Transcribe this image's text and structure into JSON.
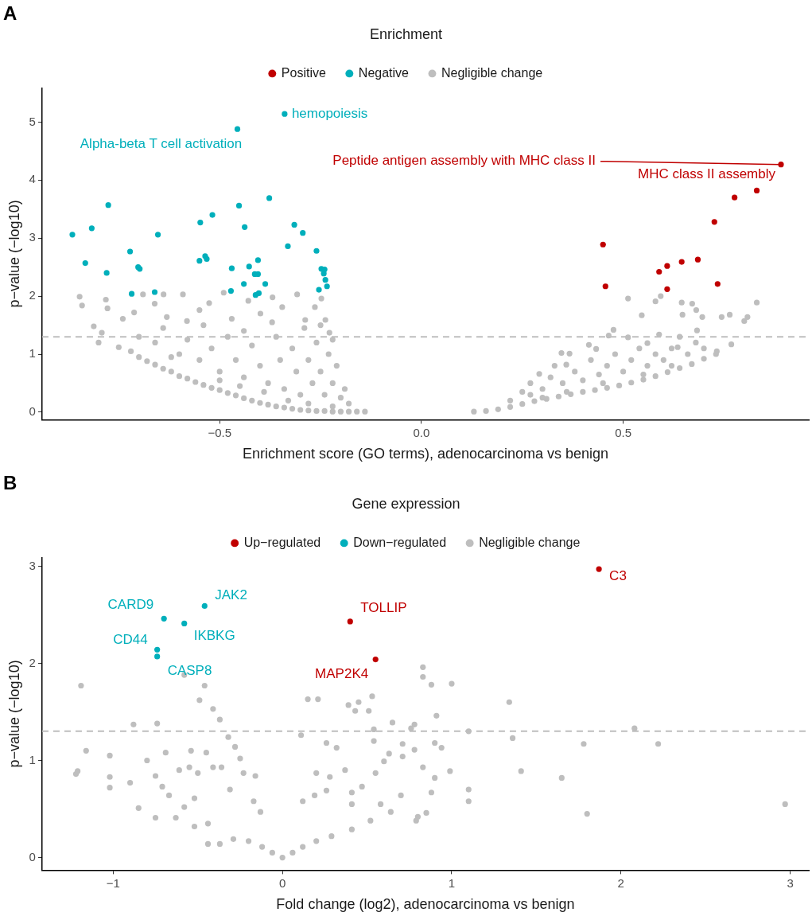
{
  "chart_data": [
    {
      "type": "scatter",
      "title": "A",
      "xlabel": "Enrichment score (GO terms), adenocarcinoma vs benign",
      "ylabel": "p−value (−log10)",
      "legend_title": "Enrichment",
      "legend": "top",
      "marker": "circle",
      "grid": false,
      "xlim": [
        -0.94,
        0.96
      ],
      "ylim": [
        -0.13,
        5.59
      ],
      "xticks": [
        {
          "value": -0.5,
          "label": "−0.5"
        },
        {
          "value": 0,
          "label": "0.0"
        },
        {
          "value": 0.5,
          "label": "0.5"
        }
      ],
      "yticks": [
        0,
        1,
        2,
        3,
        4,
        5
      ],
      "ref_lines": [
        {
          "axis": "y",
          "value": 1.3,
          "color": "#bebebe",
          "line_style": "dashed"
        }
      ],
      "annotations": [
        {
          "text": "hemopoiesis",
          "x": -0.339,
          "y": 5.14
        },
        {
          "text": "Alpha-beta T cell activation",
          "x": -0.456,
          "y": 4.88
        },
        {
          "text": "Peptide antigen assembly with MHC class II",
          "x": 0.891,
          "y": 4.27
        },
        {
          "text": "MHC class II assembly",
          "x": 0.891,
          "y": 4.27
        }
      ],
      "series": [
        {
          "name": "Negative",
          "color": "#00afbb",
          "x": [
            -0.339,
            -0.456,
            -0.776,
            -0.817,
            -0.865,
            -0.653,
            -0.722,
            -0.833,
            -0.702,
            -0.698,
            -0.78,
            -0.718,
            -0.661,
            -0.548,
            -0.518,
            -0.452,
            -0.377,
            -0.438,
            -0.315,
            -0.294,
            -0.331,
            -0.26,
            -0.536,
            -0.532,
            -0.55,
            -0.47,
            -0.427,
            -0.405,
            -0.413,
            -0.405,
            -0.44,
            -0.387,
            -0.472,
            -0.403,
            -0.411,
            -0.248,
            -0.24,
            -0.242,
            -0.238,
            -0.234,
            -0.254
          ],
          "values": [
            5.14,
            4.88,
            3.57,
            3.17,
            3.06,
            3.06,
            2.77,
            2.57,
            2.5,
            2.47,
            2.4,
            2.04,
            2.07,
            3.27,
            3.4,
            3.56,
            3.69,
            3.19,
            3.23,
            3.09,
            2.86,
            2.78,
            2.69,
            2.64,
            2.61,
            2.48,
            2.51,
            2.62,
            2.38,
            2.38,
            2.21,
            2.21,
            2.09,
            2.05,
            2.02,
            2.47,
            2.46,
            2.39,
            2.28,
            2.17,
            2.11
          ]
        },
        {
          "name": "Negligible change",
          "color": "#bebebe",
          "x": [
            -0.847,
            -0.841,
            -0.782,
            -0.778,
            -0.812,
            -0.792,
            -0.74,
            -0.712,
            -0.69,
            -0.661,
            -0.639,
            -0.631,
            -0.591,
            -0.581,
            -0.55,
            -0.526,
            -0.49,
            -0.47,
            -0.429,
            -0.399,
            -0.369,
            -0.345,
            -0.308,
            -0.288,
            -0.264,
            -0.248,
            -0.238,
            -0.228,
            -0.8,
            -0.75,
            -0.72,
            -0.7,
            -0.68,
            -0.66,
            -0.64,
            -0.62,
            -0.6,
            -0.58,
            -0.56,
            -0.54,
            -0.52,
            -0.5,
            -0.48,
            -0.46,
            -0.44,
            -0.42,
            -0.4,
            -0.38,
            -0.36,
            -0.34,
            -0.32,
            -0.3,
            -0.28,
            -0.26,
            -0.24,
            -0.22,
            -0.2,
            -0.18,
            -0.16,
            -0.14,
            -0.66,
            -0.6,
            -0.58,
            -0.55,
            -0.52,
            -0.5,
            -0.48,
            -0.46,
            -0.44,
            -0.42,
            -0.4,
            -0.38,
            -0.36,
            -0.35,
            -0.34,
            -0.32,
            -0.31,
            -0.3,
            -0.29,
            -0.28,
            -0.27,
            -0.26,
            -0.25,
            -0.24,
            -0.23,
            -0.22,
            -0.21,
            -0.2,
            -0.19,
            -0.18,
            -0.33,
            -0.28,
            -0.22,
            -0.45,
            -0.39,
            -0.5,
            -0.62,
            -0.7,
            -0.64,
            -0.54,
            -0.44,
            -0.37,
            -0.25,
            -0.22,
            0.512,
            0.546,
            0.58,
            0.593,
            0.645,
            0.671,
            0.681,
            0.647,
            0.696,
            0.744,
            0.764,
            0.8,
            0.808,
            0.831,
            0.476,
            0.464,
            0.589,
            0.683,
            0.347,
            0.367,
            0.415,
            0.433,
            0.292,
            0.359,
            0.512,
            0.56,
            0.635,
            0.732,
            0.768,
            0.13,
            0.16,
            0.19,
            0.22,
            0.25,
            0.28,
            0.31,
            0.34,
            0.37,
            0.4,
            0.43,
            0.46,
            0.49,
            0.52,
            0.55,
            0.58,
            0.61,
            0.64,
            0.67,
            0.7,
            0.73,
            0.22,
            0.25,
            0.27,
            0.3,
            0.32,
            0.33,
            0.35,
            0.38,
            0.4,
            0.42,
            0.44,
            0.46,
            0.48,
            0.5,
            0.52,
            0.54,
            0.56,
            0.58,
            0.6,
            0.62,
            0.64,
            0.66,
            0.68,
            0.7,
            0.3,
            0.36,
            0.45,
            0.55,
            0.62,
            0.27
          ],
          "values": [
            1.99,
            1.84,
            1.94,
            1.79,
            1.48,
            1.37,
            1.61,
            1.72,
            2.03,
            1.87,
            2.03,
            1.64,
            2.03,
            1.57,
            1.76,
            1.88,
            2.06,
            1.61,
            1.92,
            1.7,
            1.98,
            1.81,
            2.03,
            1.59,
            1.81,
            1.96,
            1.59,
            1.37,
            1.2,
            1.12,
            1.05,
            0.95,
            0.88,
            0.82,
            0.75,
            0.7,
            0.62,
            0.58,
            0.52,
            0.47,
            0.42,
            0.38,
            0.33,
            0.29,
            0.24,
            0.2,
            0.16,
            0.13,
            0.1,
            0.08,
            0.06,
            0.04,
            0.03,
            0.02,
            0.02,
            0.01,
            0.01,
            0.01,
            0.01,
            0.01,
            1.2,
            1.0,
            1.25,
            0.9,
            1.1,
            0.7,
            1.3,
            0.9,
            0.6,
            1.15,
            0.8,
            0.5,
            1.3,
            0.9,
            0.4,
            1.1,
            0.7,
            0.3,
            1.45,
            0.9,
            0.5,
            1.2,
            0.7,
            0.3,
            1.0,
            0.5,
            0.8,
            0.25,
            0.4,
            0.15,
            0.2,
            0.15,
            0.1,
            0.45,
            0.35,
            0.55,
            0.95,
            1.3,
            1.45,
            1.5,
            1.4,
            1.55,
            1.5,
            1.25,
            1.96,
            1.67,
            1.91,
            2.0,
            1.89,
            1.87,
            1.76,
            1.68,
            1.64,
            1.64,
            1.68,
            1.57,
            1.64,
            1.89,
            1.42,
            1.32,
            1.34,
            1.41,
            1.02,
            1.01,
            1.16,
            1.09,
            0.66,
            0.82,
            1.29,
            1.19,
            1.12,
            1.05,
            1.17,
            0.01,
            0.02,
            0.05,
            0.09,
            0.14,
            0.19,
            0.23,
            0.27,
            0.31,
            0.35,
            0.38,
            0.42,
            0.46,
            0.51,
            0.56,
            0.62,
            0.69,
            0.76,
            0.83,
            0.92,
            1.0,
            0.2,
            0.35,
            0.5,
            0.4,
            0.6,
            0.8,
            0.5,
            0.7,
            0.55,
            0.9,
            0.65,
            0.8,
            1.0,
            0.7,
            0.9,
            1.1,
            0.8,
            1.0,
            0.9,
            1.1,
            1.3,
            1.0,
            1.2,
            1.1,
            0.25,
            0.35,
            0.5,
            0.65,
            0.8,
            0.3
          ]
        },
        {
          "name": "Positive",
          "color": "#c00000",
          "x": [
            0.891,
            0.831,
            0.776,
            0.726,
            0.45,
            0.685,
            0.645,
            0.609,
            0.589,
            0.456,
            0.609,
            0.734
          ],
          "values": [
            4.27,
            3.82,
            3.7,
            3.28,
            2.89,
            2.63,
            2.59,
            2.52,
            2.42,
            2.17,
            2.12,
            2.21
          ]
        }
      ]
    },
    {
      "type": "scatter",
      "title": "B",
      "xlabel": "Fold change (log2), adenocarcinoma vs benign",
      "ylabel": "p−value (−log10)",
      "legend_title": "Gene expression",
      "legend": "top",
      "marker": "circle",
      "grid": false,
      "xlim": [
        -1.42,
        3.11
      ],
      "ylim": [
        -0.13,
        3.09
      ],
      "xticks": [
        {
          "value": -1,
          "label": "−1"
        },
        0,
        1,
        2,
        3
      ],
      "yticks": [
        0,
        1,
        2,
        3
      ],
      "ref_lines": [
        {
          "axis": "y",
          "value": 1.3,
          "color": "#bebebe",
          "line_style": "dashed"
        }
      ],
      "annotations": [
        {
          "text": "C3",
          "x": 1.87,
          "y": 2.97
        },
        {
          "text": "TOLLIP",
          "x": 0.4,
          "y": 2.43
        },
        {
          "text": "MAP2K4",
          "x": 0.55,
          "y": 2.04
        },
        {
          "text": "JAK2",
          "x": -0.46,
          "y": 2.59
        },
        {
          "text": "CARD9",
          "x": -0.7,
          "y": 2.46
        },
        {
          "text": "IKBKG",
          "x": -0.58,
          "y": 2.41
        },
        {
          "text": "CD44",
          "x": -0.74,
          "y": 2.14
        },
        {
          "text": "CASP8",
          "x": -0.74,
          "y": 2.07
        }
      ],
      "series": [
        {
          "name": "Down−regulated",
          "color": "#00afbb",
          "x": [
            -0.46,
            -0.7,
            -0.58,
            -0.74,
            -0.74
          ],
          "values": [
            2.59,
            2.46,
            2.41,
            2.14,
            2.07
          ]
        },
        {
          "name": "Negligible change",
          "color": "#bebebe",
          "x": [
            -1.19,
            0.83,
            0.83,
            0.88,
            1.0,
            1.34,
            0.15,
            0.21,
            -0.46,
            -0.58,
            -0.49,
            -0.41,
            -0.37,
            0.39,
            0.45,
            0.53,
            0.51,
            0.43,
            0.91,
            0.65,
            0.78,
            -0.88,
            -0.74,
            1.36,
            1.41,
            1.65,
            1.78,
            1.8,
            2.08,
            2.22,
            2.97,
            1.1,
            1.1,
            1.1,
            0.99,
            -1.22,
            -1.21,
            -1.16,
            -1.02,
            -1.02,
            -1.02,
            -0.9,
            -0.85,
            -0.8,
            -0.75,
            -0.75,
            -0.71,
            -0.69,
            -0.67,
            -0.63,
            -0.61,
            -0.55,
            -0.54,
            -0.5,
            -0.58,
            -0.52,
            -0.45,
            -0.41,
            -0.36,
            -0.32,
            -0.28,
            -0.25,
            -0.31,
            -0.23,
            -0.16,
            -0.17,
            -0.13,
            -0.44,
            -0.52,
            -0.44,
            -0.37,
            -0.29,
            -0.2,
            -0.12,
            -0.06,
            0.0,
            0.06,
            0.12,
            0.2,
            0.29,
            0.41,
            0.52,
            0.64,
            0.8,
            0.85,
            0.79,
            0.12,
            0.19,
            0.2,
            0.26,
            0.32,
            0.28,
            0.37,
            0.41,
            0.47,
            0.55,
            0.6,
            0.63,
            0.71,
            0.71,
            0.78,
            0.83,
            0.9,
            0.94,
            0.9,
            0.88,
            0.54,
            0.54,
            0.11,
            0.26,
            0.76,
            0.41,
            0.58,
            0.7
          ],
          "values": [
            1.77,
            1.96,
            1.86,
            1.78,
            1.79,
            1.6,
            1.63,
            1.63,
            1.77,
            1.88,
            1.62,
            1.53,
            1.42,
            1.57,
            1.6,
            1.66,
            1.51,
            1.51,
            1.46,
            1.39,
            1.37,
            1.37,
            1.38,
            1.23,
            0.89,
            0.82,
            1.17,
            0.45,
            1.33,
            1.17,
            0.55,
            1.3,
            0.7,
            0.58,
            0.89,
            0.86,
            0.89,
            1.1,
            1.05,
            0.72,
            0.83,
            0.77,
            0.51,
            1.0,
            0.84,
            0.41,
            0.73,
            1.08,
            0.64,
            0.41,
            0.9,
            0.93,
            1.1,
            0.87,
            0.52,
            0.61,
            1.08,
            0.93,
            0.93,
            1.24,
            1.14,
            1.02,
            0.7,
            0.87,
            0.84,
            0.58,
            0.47,
            0.35,
            0.32,
            0.14,
            0.14,
            0.19,
            0.17,
            0.11,
            0.05,
            0.0,
            0.05,
            0.11,
            0.17,
            0.22,
            0.29,
            0.38,
            0.47,
            0.42,
            0.46,
            0.38,
            0.58,
            0.64,
            0.87,
            1.18,
            1.13,
            0.83,
            0.9,
            0.67,
            0.73,
            0.87,
            0.99,
            1.07,
            1.04,
            1.17,
            1.11,
            0.93,
            1.18,
            1.13,
            0.82,
            0.67,
            1.2,
            1.32,
            1.26,
            0.69,
            1.33,
            0.55,
            0.55,
            0.64
          ]
        },
        {
          "name": "Up−regulated",
          "color": "#c00000",
          "x": [
            1.87,
            0.4,
            0.55
          ],
          "values": [
            2.97,
            2.43,
            2.04
          ]
        }
      ]
    }
  ]
}
